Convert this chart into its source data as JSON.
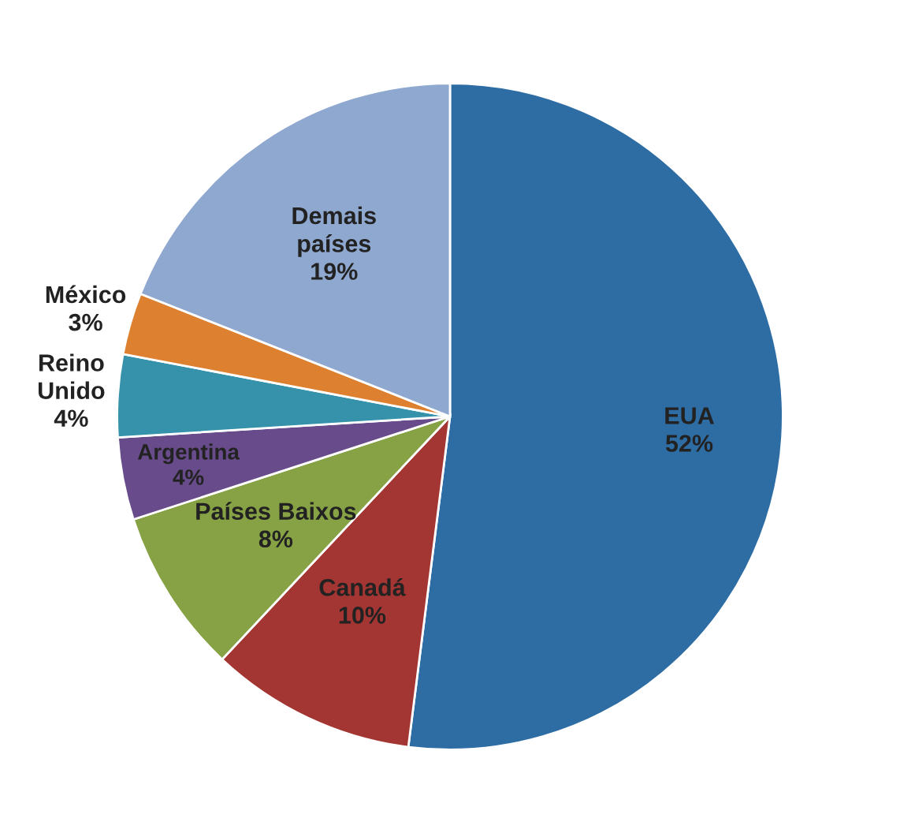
{
  "chart_data": {
    "type": "pie",
    "categories": [
      "EUA",
      "Canadá",
      "Países Baixos",
      "Argentina",
      "Reino Unido",
      "México",
      "Demais países"
    ],
    "values": [
      52,
      10,
      8,
      4,
      4,
      3,
      19
    ],
    "colors": [
      "#2e6ca4",
      "#a33532",
      "#87a244",
      "#674b8a",
      "#3592aa",
      "#dd8130",
      "#8fa8d0"
    ],
    "value_labels": [
      "52%",
      "10%",
      "8%",
      "4%",
      "4%",
      "3%",
      "19%"
    ],
    "legend": false
  }
}
